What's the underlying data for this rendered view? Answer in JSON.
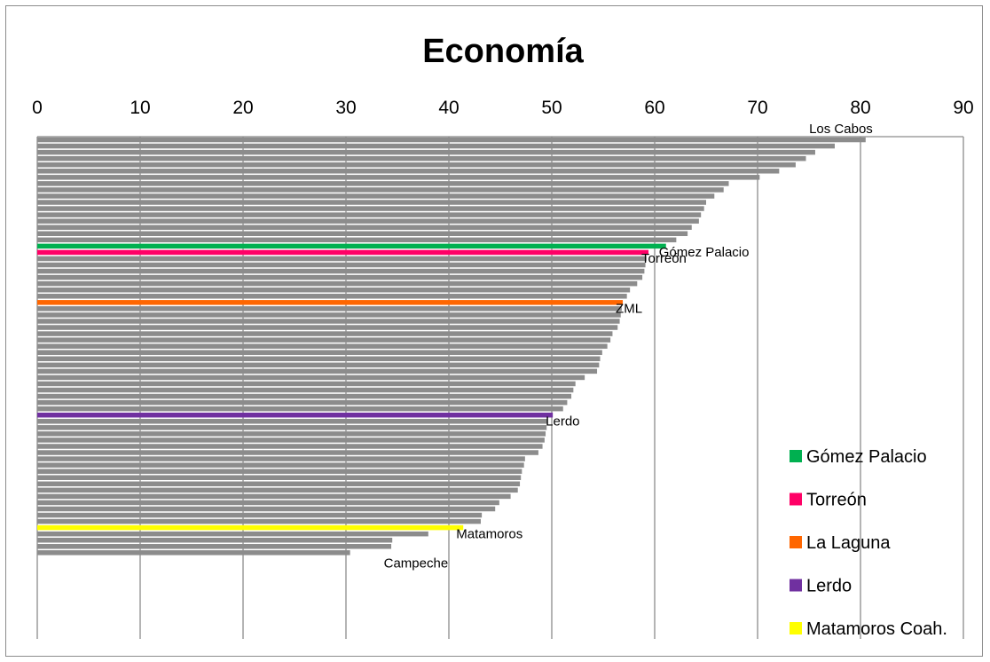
{
  "chart_data": {
    "type": "bar",
    "orientation": "horizontal",
    "title": "Economía",
    "xlim": [
      0,
      90
    ],
    "xticks": [
      0,
      10,
      20,
      30,
      40,
      50,
      60,
      70,
      80,
      90
    ],
    "grid": true,
    "x_axis_position": "top",
    "default_color": "#8c8c8c",
    "values": [
      80.5,
      77.5,
      75.6,
      74.7,
      73.7,
      72.1,
      70.2,
      67.2,
      66.7,
      65.8,
      65.0,
      64.8,
      64.5,
      64.3,
      63.6,
      63.2,
      62.1,
      61.1,
      59.4,
      59.2,
      59.1,
      59.0,
      58.8,
      58.3,
      57.6,
      57.3,
      56.9,
      56.8,
      56.7,
      56.6,
      56.4,
      55.9,
      55.7,
      55.4,
      54.9,
      54.7,
      54.6,
      54.4,
      53.2,
      52.3,
      52.1,
      51.9,
      51.5,
      51.1,
      50.1,
      49.6,
      49.5,
      49.4,
      49.3,
      49.1,
      48.7,
      47.4,
      47.3,
      47.1,
      47.0,
      46.9,
      46.7,
      46.0,
      44.9,
      44.5,
      43.2,
      43.1,
      41.4,
      38.0,
      34.5,
      34.4,
      30.4
    ],
    "highlights": [
      {
        "index": 17,
        "color": "#00b050",
        "label": "Gómez Palacio"
      },
      {
        "index": 18,
        "color": "#ff0066",
        "label": "Torreón"
      },
      {
        "index": 26,
        "color": "#ff6600",
        "label": "ZML"
      },
      {
        "index": 44,
        "color": "#7030a0",
        "label": "Lerdo"
      },
      {
        "index": 62,
        "color": "#ffff00",
        "label": "Matamoros"
      }
    ],
    "annotations": [
      {
        "index": 0,
        "text": "Los Cabos"
      },
      {
        "index": 66,
        "text": "Campeche"
      }
    ],
    "legend": {
      "position": "bottom-right",
      "entries": [
        {
          "label": "Gómez Palacio",
          "color": "#00b050"
        },
        {
          "label": "Torreón",
          "color": "#ff0066"
        },
        {
          "label": "La Laguna",
          "color": "#ff6600"
        },
        {
          "label": "Lerdo",
          "color": "#7030a0"
        },
        {
          "label": "Matamoros Coah.",
          "color": "#ffff00"
        }
      ]
    }
  }
}
